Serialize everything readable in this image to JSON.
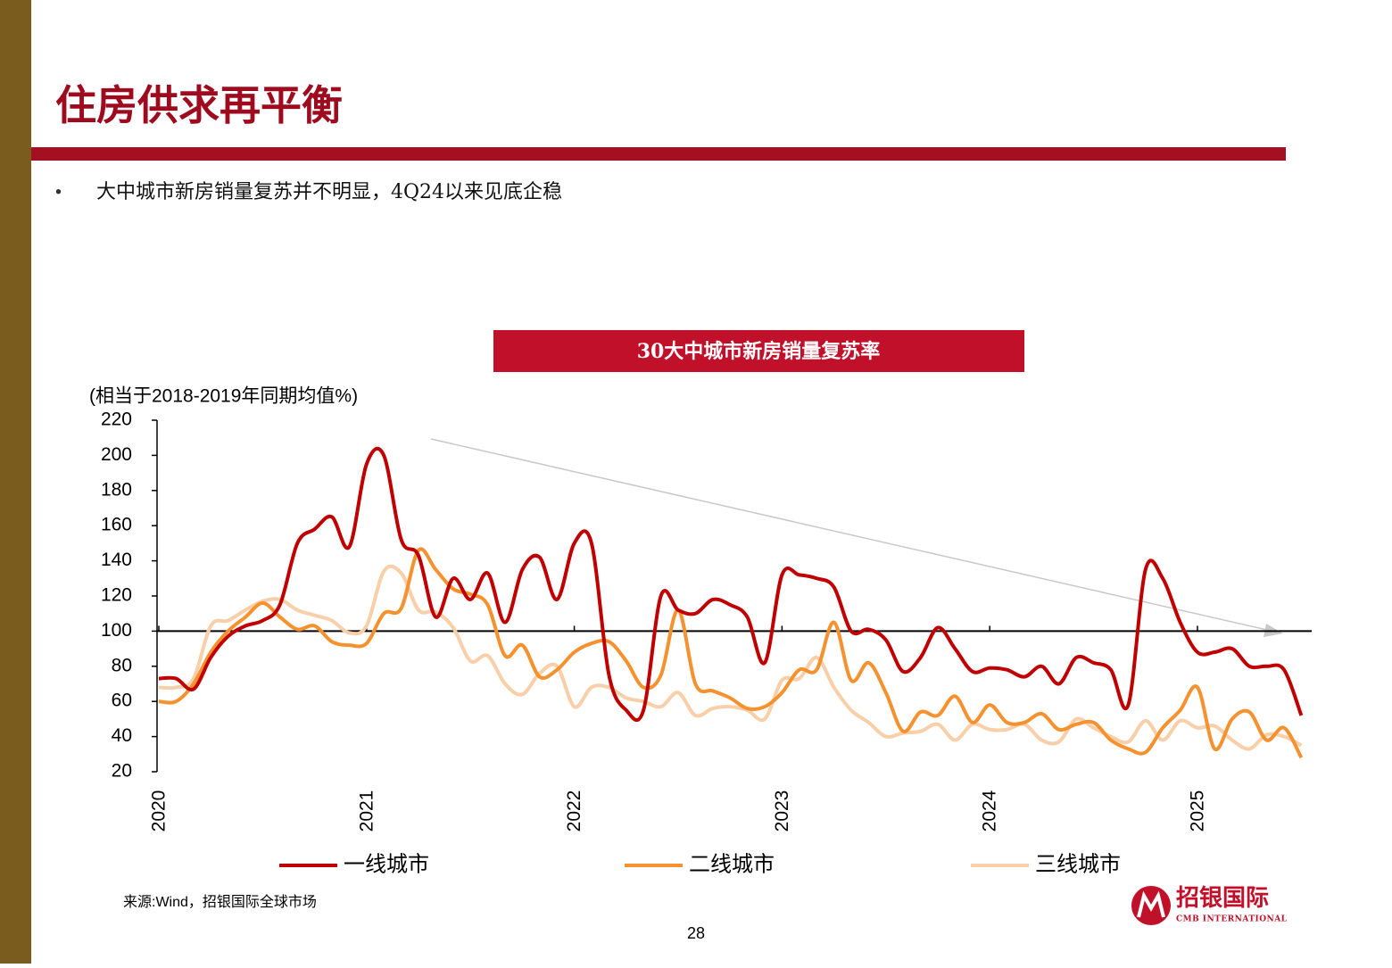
{
  "slide": {
    "title": "住房供求再平衡",
    "bullet": "大中城市新房销量复苏并不明显，4Q24以来见底企稳",
    "source": "来源:Wind，招银国际全球市场",
    "page_number": "28",
    "logo": {
      "name": "招银国际",
      "subtitle": "CMB INTERNATIONAL"
    }
  },
  "chart_data": {
    "type": "line",
    "title": "30大中城市新房销量复苏率",
    "y_label": "(相当于2018-2019年同期均值%)",
    "x": [
      2020,
      2020.083,
      2020.167,
      2020.25,
      2020.333,
      2020.417,
      2020.5,
      2020.583,
      2020.667,
      2020.75,
      2020.833,
      2020.917,
      2021,
      2021.083,
      2021.167,
      2021.25,
      2021.333,
      2021.417,
      2021.5,
      2021.583,
      2021.667,
      2021.75,
      2021.833,
      2021.917,
      2022,
      2022.083,
      2022.167,
      2022.25,
      2022.333,
      2022.417,
      2022.5,
      2022.583,
      2022.667,
      2022.75,
      2022.833,
      2022.917,
      2023,
      2023.083,
      2023.167,
      2023.25,
      2023.333,
      2023.417,
      2023.5,
      2023.583,
      2023.667,
      2023.75,
      2023.833,
      2023.917,
      2024,
      2024.083,
      2024.167,
      2024.25,
      2024.333,
      2024.417,
      2024.5,
      2024.583,
      2024.667,
      2024.75,
      2024.833,
      2024.917,
      2025,
      2025.083,
      2025.167,
      2025.25,
      2025.333,
      2025.417,
      2025.5
    ],
    "series": [
      {
        "name": "一线城市",
        "color": "#c00000",
        "values": [
          73,
          73,
          67,
          85,
          97,
          103,
          106,
          115,
          150,
          158,
          165,
          148,
          195,
          200,
          152,
          143,
          108,
          130,
          118,
          133,
          105,
          135,
          142,
          118,
          150,
          150,
          75,
          55,
          55,
          120,
          112,
          110,
          118,
          115,
          108,
          82,
          132,
          132,
          130,
          125,
          100,
          101,
          95,
          77,
          85,
          102,
          90,
          77,
          79,
          78,
          74,
          80,
          70,
          85,
          82,
          78,
          58,
          135,
          130,
          105,
          88,
          88,
          90,
          80,
          80,
          78,
          52
        ]
      },
      {
        "name": "二线城市",
        "color": "#f5922f",
        "values": [
          60,
          60,
          70,
          88,
          100,
          108,
          116,
          108,
          101,
          103,
          94,
          92,
          93,
          110,
          113,
          146,
          135,
          124,
          121,
          115,
          86,
          92,
          74,
          78,
          88,
          93,
          94,
          83,
          68,
          75,
          112,
          70,
          66,
          62,
          56,
          57,
          65,
          78,
          78,
          105,
          72,
          82,
          65,
          43,
          54,
          52,
          63,
          48,
          58,
          48,
          48,
          53,
          44,
          47,
          48,
          38,
          33,
          31,
          45,
          55,
          68,
          33,
          50,
          54,
          38,
          45,
          28
        ]
      },
      {
        "name": "三线城市",
        "color": "#f8cfa8",
        "values": [
          68,
          68,
          73,
          103,
          106,
          112,
          117,
          118,
          112,
          109,
          106,
          99,
          103,
          134,
          133,
          112,
          111,
          102,
          83,
          86,
          70,
          64,
          76,
          80,
          57,
          68,
          68,
          62,
          60,
          57,
          65,
          52,
          56,
          57,
          55,
          50,
          72,
          73,
          85,
          68,
          55,
          48,
          40,
          42,
          43,
          47,
          38,
          47,
          44,
          44,
          47,
          38,
          37,
          50,
          45,
          40,
          37,
          49,
          38,
          49,
          45,
          46,
          38,
          33,
          41,
          40,
          35
        ]
      }
    ],
    "xlim": [
      2020,
      2025.55
    ],
    "xticks": [
      2020,
      2021,
      2022,
      2023,
      2024,
      2025
    ],
    "ylim": [
      20,
      220
    ],
    "yticks": [
      20,
      40,
      60,
      80,
      100,
      120,
      140,
      160,
      180,
      200,
      220
    ],
    "reference_line": 100
  }
}
